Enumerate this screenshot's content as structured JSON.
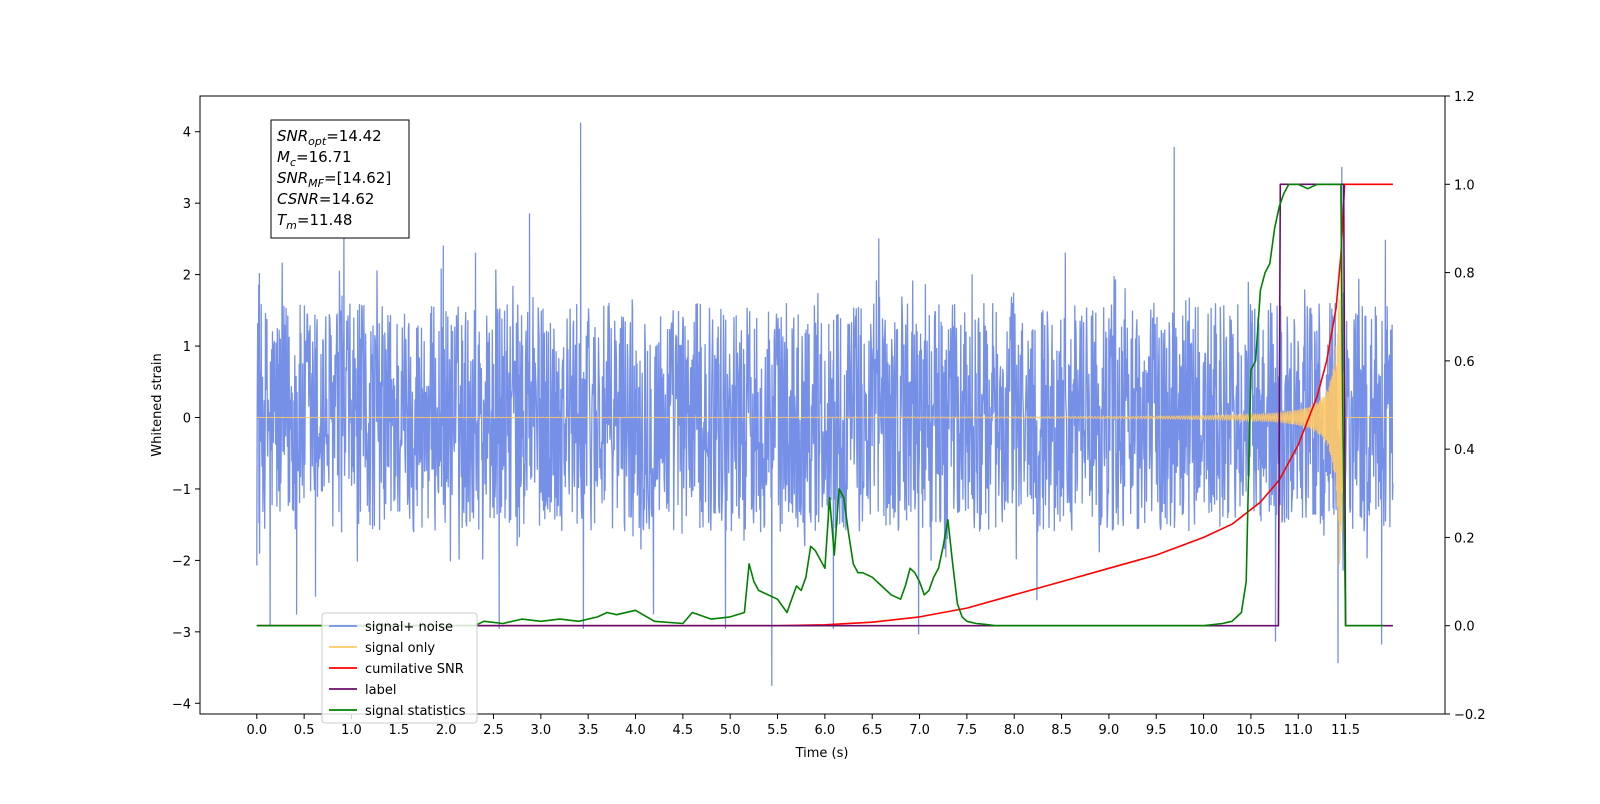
{
  "chart_data": {
    "type": "line",
    "title": "",
    "xlabel": "Time (s)",
    "ylabel": "Whitened strain",
    "xlim": [
      -0.6,
      12.55
    ],
    "ylim": [
      -4.15,
      4.5
    ],
    "y2lim": [
      -0.2,
      1.2
    ],
    "x_ticks": [
      0.0,
      0.5,
      1.0,
      1.5,
      2.0,
      2.5,
      3.0,
      3.5,
      4.0,
      4.5,
      5.0,
      5.5,
      6.0,
      6.5,
      7.0,
      7.5,
      8.0,
      8.5,
      9.0,
      9.5,
      10.0,
      10.5,
      11.0,
      11.5
    ],
    "x_tick_labels": [
      "0.0",
      "0.5",
      "1.0",
      "1.5",
      "2.0",
      "2.5",
      "3.0",
      "3.5",
      "4.0",
      "4.5",
      "5.0",
      "5.5",
      "6.0",
      "6.5",
      "7.0",
      "7.5",
      "8.0",
      "8.5",
      "9.0",
      "9.5",
      "10.0",
      "10.5",
      "11.0",
      "11.5"
    ],
    "y_ticks": [
      -4,
      -3,
      -2,
      -1,
      0,
      1,
      2,
      3,
      4
    ],
    "y_tick_labels": [
      "−4",
      "−3",
      "−2",
      "−1",
      "0",
      "1",
      "2",
      "3",
      "4"
    ],
    "y2_ticks": [
      -0.2,
      0.0,
      0.2,
      0.4,
      0.6,
      0.8,
      1.0,
      1.2
    ],
    "y2_tick_labels": [
      "−0.2",
      "0.0",
      "0.2",
      "0.4",
      "0.6",
      "0.8",
      "1.0",
      "1.2"
    ],
    "grid": false,
    "legend_position": "lower-left",
    "legend": [
      {
        "label": "signal+ noise",
        "color": "#7590e6"
      },
      {
        "label": "signal only",
        "color": "#ffc966"
      },
      {
        "label": "cumilative SNR",
        "color": "#ff0000"
      },
      {
        "label": "label",
        "color": "#6a0d6a"
      },
      {
        "label": "signal statistics",
        "color": "#008000"
      }
    ],
    "stats_box": [
      {
        "sym": "SNR",
        "sub": "opt",
        "val": "=14.42"
      },
      {
        "sym": "M",
        "sub": "c",
        "val": "=16.71"
      },
      {
        "sym": "SNR",
        "sub": "MF",
        "val": "=[14.62]"
      },
      {
        "sym": "CSNR",
        "sub": "",
        "val": "=14.62"
      },
      {
        "sym": "T",
        "sub": "m",
        "val": "=11.48"
      }
    ],
    "series": [
      {
        "name": "signal+ noise",
        "axis": "left",
        "color": "#7590e6",
        "kind": "noise",
        "x_range": [
          0.0,
          12.0
        ],
        "amplitude_typical": 1.6,
        "peaks": [
          [
            0.02,
            1.85
          ],
          [
            0.03,
            -1.9
          ],
          [
            0.14,
            -2.9
          ],
          [
            0.42,
            -2.75
          ],
          [
            0.62,
            -2.5
          ],
          [
            0.92,
            2.55
          ],
          [
            1.97,
            2.4
          ],
          [
            2.31,
            2.3
          ],
          [
            2.56,
            -2.95
          ],
          [
            2.88,
            2.85
          ],
          [
            3.42,
            4.12
          ],
          [
            3.45,
            -2.95
          ],
          [
            4.19,
            -2.75
          ],
          [
            4.95,
            -2.95
          ],
          [
            5.44,
            -3.75
          ],
          [
            6.09,
            -2.95
          ],
          [
            6.57,
            2.5
          ],
          [
            6.99,
            -3.03
          ],
          [
            8.24,
            -2.55
          ],
          [
            8.54,
            2.3
          ],
          [
            9.69,
            3.78
          ],
          [
            10.76,
            -3.13
          ],
          [
            11.42,
            -3.43
          ],
          [
            11.46,
            3.5
          ],
          [
            11.88,
            -3.17
          ],
          [
            11.92,
            2.48
          ]
        ]
      },
      {
        "name": "signal only",
        "axis": "left",
        "color": "#ffc966",
        "kind": "chirp",
        "merger_time": 11.48,
        "peak_amplitude": 2.2
      },
      {
        "name": "cumilative SNR",
        "axis": "right",
        "x": [
          0.0,
          5.5,
          6.0,
          6.5,
          7.0,
          7.5,
          8.0,
          8.5,
          9.0,
          9.5,
          10.0,
          10.3,
          10.6,
          10.8,
          11.0,
          11.2,
          11.3,
          11.4,
          11.45,
          11.48,
          11.49,
          12.0
        ],
        "y": [
          0.0,
          0.0,
          0.002,
          0.008,
          0.02,
          0.04,
          0.07,
          0.1,
          0.13,
          0.16,
          0.2,
          0.23,
          0.28,
          0.33,
          0.41,
          0.52,
          0.6,
          0.72,
          0.84,
          0.96,
          1.0,
          1.0
        ]
      },
      {
        "name": "label",
        "axis": "right",
        "x": [
          0.0,
          10.79,
          10.81,
          11.48,
          11.5,
          12.0
        ],
        "y": [
          0.0,
          0.0,
          1.0,
          1.0,
          0.0,
          0.0
        ]
      },
      {
        "name": "signal statistics",
        "axis": "right",
        "x": [
          0.0,
          2.3,
          2.4,
          2.6,
          2.8,
          3.0,
          3.2,
          3.4,
          3.6,
          3.7,
          3.8,
          4.0,
          4.2,
          4.5,
          4.6,
          4.8,
          5.0,
          5.15,
          5.2,
          5.25,
          5.3,
          5.5,
          5.6,
          5.65,
          5.7,
          5.75,
          5.8,
          5.85,
          5.9,
          6.0,
          6.05,
          6.1,
          6.15,
          6.2,
          6.25,
          6.3,
          6.35,
          6.4,
          6.5,
          6.6,
          6.7,
          6.8,
          6.85,
          6.9,
          6.95,
          7.0,
          7.05,
          7.1,
          7.15,
          7.2,
          7.25,
          7.3,
          7.35,
          7.4,
          7.45,
          7.5,
          7.6,
          7.7,
          7.8,
          7.9,
          8.0,
          9.5,
          10.0,
          10.2,
          10.3,
          10.4,
          10.45,
          10.5,
          10.55,
          10.6,
          10.65,
          10.7,
          10.75,
          10.8,
          10.85,
          10.9,
          11.0,
          11.1,
          11.2,
          11.3,
          11.4,
          11.45,
          11.47,
          11.5,
          11.55,
          11.6,
          11.9
        ],
        "y": [
          0.0,
          0.0,
          0.01,
          0.005,
          0.015,
          0.01,
          0.015,
          0.01,
          0.02,
          0.03,
          0.025,
          0.035,
          0.01,
          0.005,
          0.03,
          0.015,
          0.02,
          0.03,
          0.14,
          0.1,
          0.08,
          0.06,
          0.03,
          0.06,
          0.09,
          0.08,
          0.11,
          0.18,
          0.17,
          0.13,
          0.29,
          0.16,
          0.31,
          0.29,
          0.21,
          0.14,
          0.12,
          0.12,
          0.11,
          0.09,
          0.07,
          0.06,
          0.09,
          0.13,
          0.12,
          0.1,
          0.07,
          0.08,
          0.11,
          0.13,
          0.18,
          0.24,
          0.14,
          0.05,
          0.02,
          0.01,
          0.005,
          0.003,
          0.0,
          0.0,
          0.0,
          0.0,
          0.0,
          0.005,
          0.01,
          0.03,
          0.1,
          0.58,
          0.6,
          0.76,
          0.8,
          0.82,
          0.9,
          0.95,
          0.98,
          1.0,
          1.0,
          0.99,
          1.0,
          1.0,
          1.0,
          1.0,
          0.5,
          0.0,
          0.0,
          0.0,
          0.0
        ]
      }
    ]
  }
}
